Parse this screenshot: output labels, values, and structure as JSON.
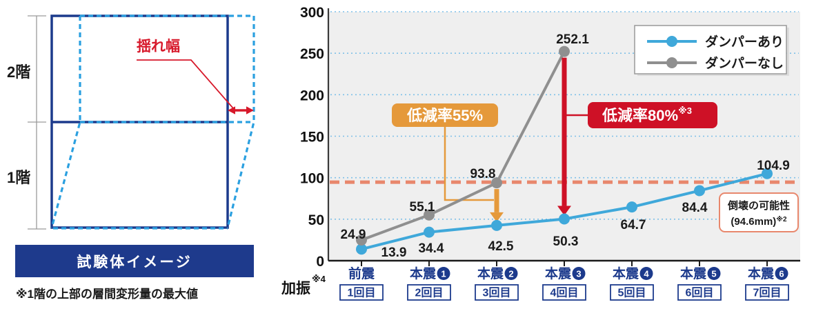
{
  "left_panel": {
    "floor_label_upper": "2階",
    "floor_label_lower": "1階",
    "sway_label": "揺れ幅",
    "caption": "試験体イメージ",
    "note": "※1階の上部の層間変形量の最大値",
    "colors": {
      "navy": "#1c3a8c",
      "dashed_blue": "#2ba0e0",
      "red": "#d7182a",
      "caption_bg": "#1e3a8c"
    }
  },
  "chart_data": {
    "type": "line",
    "xlabel": "加振",
    "xlabel_sup": "※4",
    "ylim": [
      0,
      300
    ],
    "yticks": [
      0,
      50,
      100,
      150,
      200,
      250,
      300
    ],
    "grid": true,
    "legend_position": "top-right",
    "categories": [
      {
        "label": "前震",
        "circled_num": null,
        "round": "1回目"
      },
      {
        "label": "本震",
        "circled_num": "1",
        "round": "2回目"
      },
      {
        "label": "本震",
        "circled_num": "2",
        "round": "3回目"
      },
      {
        "label": "本震",
        "circled_num": "3",
        "round": "4回目"
      },
      {
        "label": "本震",
        "circled_num": "4",
        "round": "5回目"
      },
      {
        "label": "本震",
        "circled_num": "5",
        "round": "6回目"
      },
      {
        "label": "本震",
        "circled_num": "6",
        "round": "7回目"
      }
    ],
    "series": [
      {
        "name": "ダンパーあり",
        "color": "#3fa8da",
        "values": [
          13.9,
          34.4,
          42.5,
          50.3,
          64.7,
          84.4,
          104.9
        ]
      },
      {
        "name": "ダンパーなし",
        "color": "#8f8f8f",
        "values": [
          24.9,
          55.1,
          93.8,
          252.1
        ]
      }
    ],
    "threshold": {
      "value": 94.6,
      "color": "#e8876c",
      "label_line1": "倒壊の可能性",
      "label_line2": "(94.6mm)",
      "label_sup": "※2"
    },
    "annotations": [
      {
        "label": "低減率55%",
        "sup": "",
        "color": "#e5993b",
        "category_index": 2,
        "from_value": 93.8,
        "to_value": 42.5
      },
      {
        "label": "低減率80%",
        "sup": "※3",
        "color": "#ce1126",
        "category_index": 3,
        "from_value": 252.1,
        "to_value": 50.3
      }
    ],
    "axis_color": "#3a3a3a",
    "grid_color": "#7fc0e8",
    "plot_bg": "#efefef",
    "label_color": "#1c3a8c",
    "text_color": "#1a1a1a"
  }
}
